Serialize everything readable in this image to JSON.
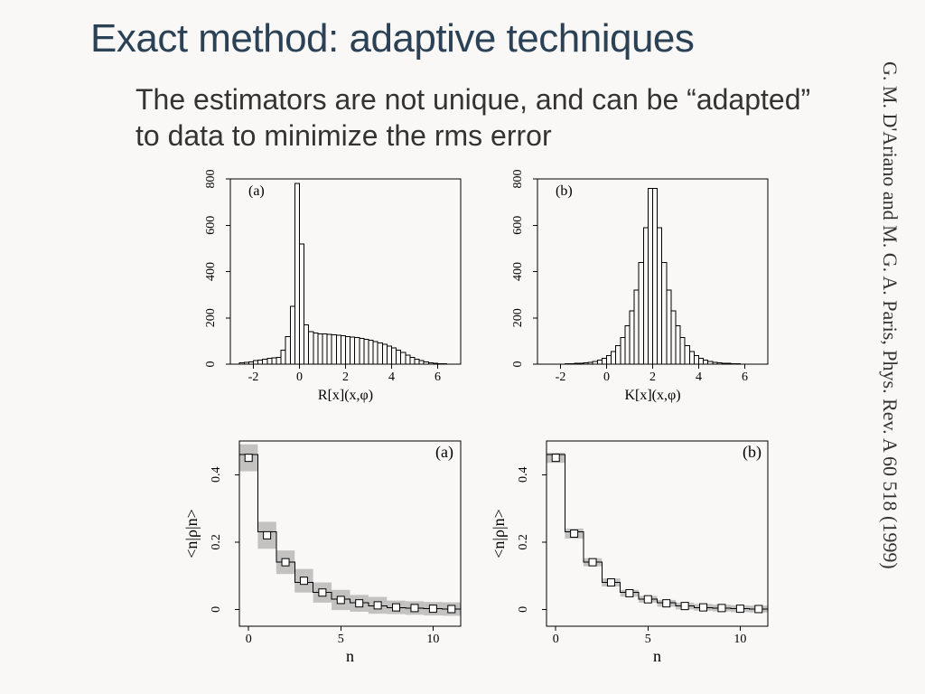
{
  "title_text": "Exact method: adaptive techniques",
  "title_color": "#2b4256",
  "subtitle_text": "The estimators are not unique, and can be “adapted” to data to minimize the rms error",
  "subtitle_color": "#333333",
  "citation_text": "G. M. D'Ariano and M. G. A. Paris, Phys. Rev. A 60 518  (1999)",
  "citation_color": "#333333",
  "top_panels": {
    "type": "histogram-pair",
    "panel_labels": [
      "(a)",
      "(b)"
    ],
    "xlim": [
      -3,
      7
    ],
    "ylim": [
      0,
      800
    ],
    "yticks": [
      0,
      200,
      400,
      600,
      800
    ],
    "xticks": [
      -2,
      0,
      2,
      4,
      6
    ],
    "xlabel_a": "R[x](x,φ)",
    "xlabel_b": "K[x](x,φ)",
    "label_fontsize": 16,
    "tick_fontsize": 14,
    "plot_bg": "#ffffff",
    "border_color": "#000000",
    "bar_stroke": "#000000",
    "bin_start": -3.0,
    "bin_width": 0.2,
    "bins_a": [
      0,
      0,
      5,
      8,
      10,
      15,
      18,
      22,
      25,
      28,
      30,
      60,
      120,
      250,
      780,
      520,
      170,
      140,
      135,
      130,
      130,
      128,
      126,
      124,
      122,
      120,
      118,
      116,
      112,
      108,
      104,
      98,
      92,
      86,
      78,
      70,
      60,
      50,
      40,
      30,
      22,
      15,
      10,
      6,
      4,
      2,
      1,
      0,
      0,
      0
    ],
    "bins_b": [
      0,
      0,
      0,
      0,
      0,
      0,
      1,
      2,
      3,
      4,
      6,
      8,
      12,
      18,
      26,
      38,
      55,
      80,
      115,
      165,
      230,
      320,
      440,
      590,
      760,
      760,
      590,
      440,
      320,
      230,
      165,
      115,
      80,
      55,
      38,
      26,
      18,
      12,
      8,
      6,
      4,
      3,
      2,
      1,
      0,
      0,
      0,
      0,
      0,
      0
    ]
  },
  "bottom_panels": {
    "type": "bar-with-error-pair",
    "panel_labels": [
      "(a)",
      "(b)"
    ],
    "xlim": [
      -0.5,
      11.5
    ],
    "ylim": [
      -0.05,
      0.5
    ],
    "yticks": [
      0,
      0.2,
      0.4
    ],
    "xticks": [
      0,
      5,
      10
    ],
    "xlabel": "n",
    "ylabel": "<n|ρ|n>",
    "label_fontsize": 18,
    "tick_fontsize": 14,
    "plot_bg": "#ffffff",
    "border_color": "#000000",
    "marker_fill": "#ffffff",
    "marker_stroke": "#000000",
    "errband_fill": "#9e9e9e",
    "series_a": {
      "n": [
        0,
        1,
        2,
        3,
        4,
        5,
        6,
        7,
        8,
        9,
        10,
        11
      ],
      "value": [
        0.46,
        0.23,
        0.14,
        0.08,
        0.05,
        0.03,
        0.02,
        0.01,
        0.005,
        0.003,
        0.002,
        0.001
      ],
      "marker": [
        0.45,
        0.22,
        0.14,
        0.085,
        0.05,
        0.028,
        0.018,
        0.012,
        0.006,
        0.004,
        0.002,
        0.001
      ],
      "err": [
        0.04,
        0.04,
        0.035,
        0.035,
        0.03,
        0.03,
        0.025,
        0.025,
        0.02,
        0.02,
        0.02,
        0.02
      ]
    },
    "series_b": {
      "n": [
        0,
        1,
        2,
        3,
        4,
        5,
        6,
        7,
        8,
        9,
        10,
        11
      ],
      "value": [
        0.46,
        0.23,
        0.14,
        0.08,
        0.05,
        0.03,
        0.02,
        0.01,
        0.005,
        0.003,
        0.002,
        0.001
      ],
      "marker": [
        0.45,
        0.225,
        0.14,
        0.08,
        0.048,
        0.03,
        0.018,
        0.01,
        0.006,
        0.004,
        0.002,
        0.001
      ],
      "err": [
        0.015,
        0.015,
        0.012,
        0.012,
        0.01,
        0.01,
        0.01,
        0.01,
        0.01,
        0.01,
        0.01,
        0.01
      ]
    }
  }
}
